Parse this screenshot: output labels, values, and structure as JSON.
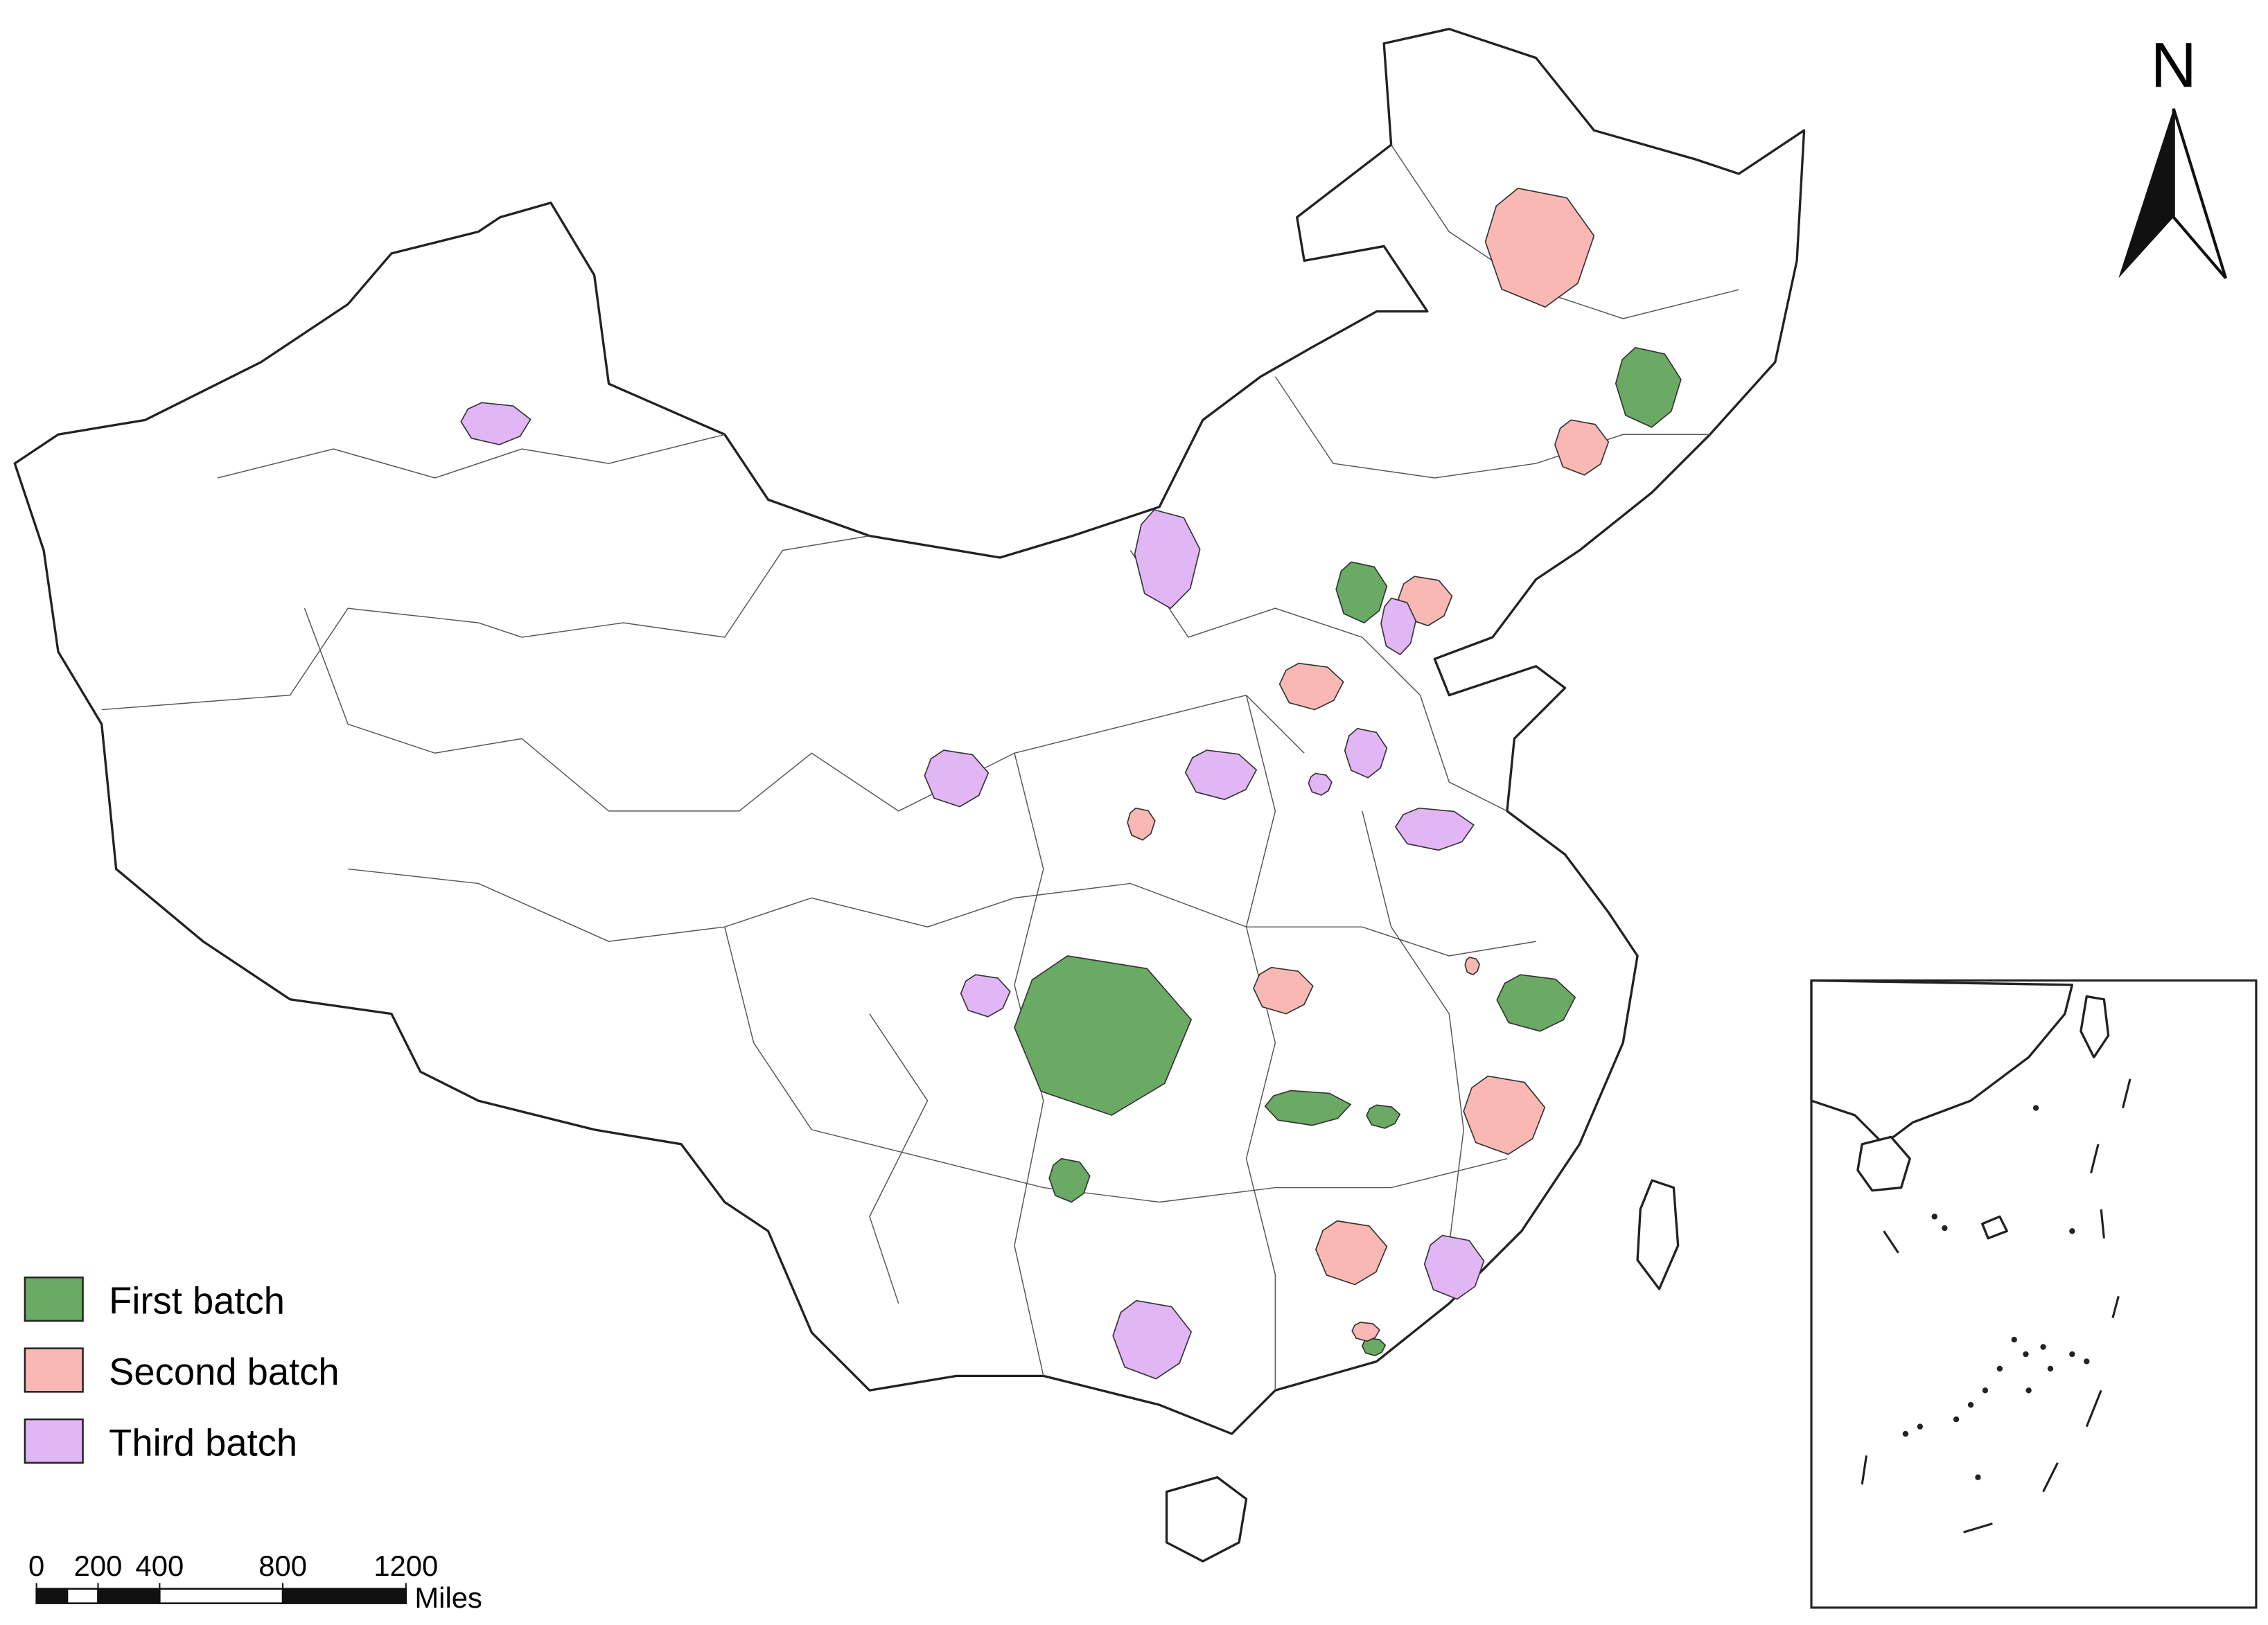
{
  "north_label": "N",
  "legend": {
    "items": [
      {
        "label": "First batch",
        "color": "#6aaa64"
      },
      {
        "label": "Second batch",
        "color": "#f9b8b4"
      },
      {
        "label": "Third batch",
        "color": "#e2b5f5"
      }
    ]
  },
  "scale_bar": {
    "ticks": [
      0,
      200,
      400,
      800,
      1200
    ],
    "unit": "Miles"
  }
}
